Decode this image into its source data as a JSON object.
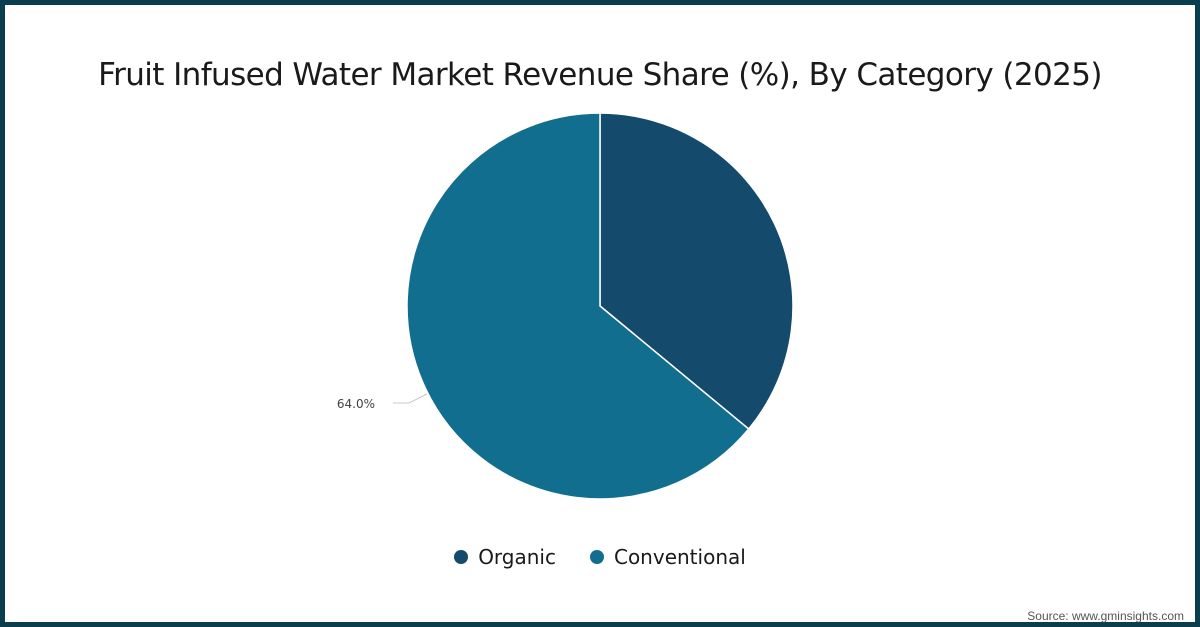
{
  "title": "Fruit Infused Water Market Revenue Share (%), By Category (2025)",
  "source": "Source: www.gminsights.com",
  "colors": {
    "border": "#0b3d4c",
    "organic": "#144a6b",
    "conventional": "#126e8e"
  },
  "legend": [
    {
      "label": "Organic",
      "color": "#144a6b"
    },
    {
      "label": "Conventional",
      "color": "#126e8e"
    }
  ],
  "data_labels": {
    "conventional": "64.0%"
  },
  "chart_data": {
    "type": "pie",
    "title": "Fruit Infused Water Market Revenue Share (%), By Category (2025)",
    "categories": [
      "Organic",
      "Conventional"
    ],
    "values": [
      36.0,
      64.0
    ],
    "unit": "%",
    "colors": [
      "#144a6b",
      "#126e8e"
    ],
    "start_angle": "12 o'clock, clockwise",
    "annotations": [
      {
        "category": "Conventional",
        "text": "64.0%"
      }
    ],
    "legend_position": "bottom",
    "source": "Source: www.gminsights.com"
  }
}
